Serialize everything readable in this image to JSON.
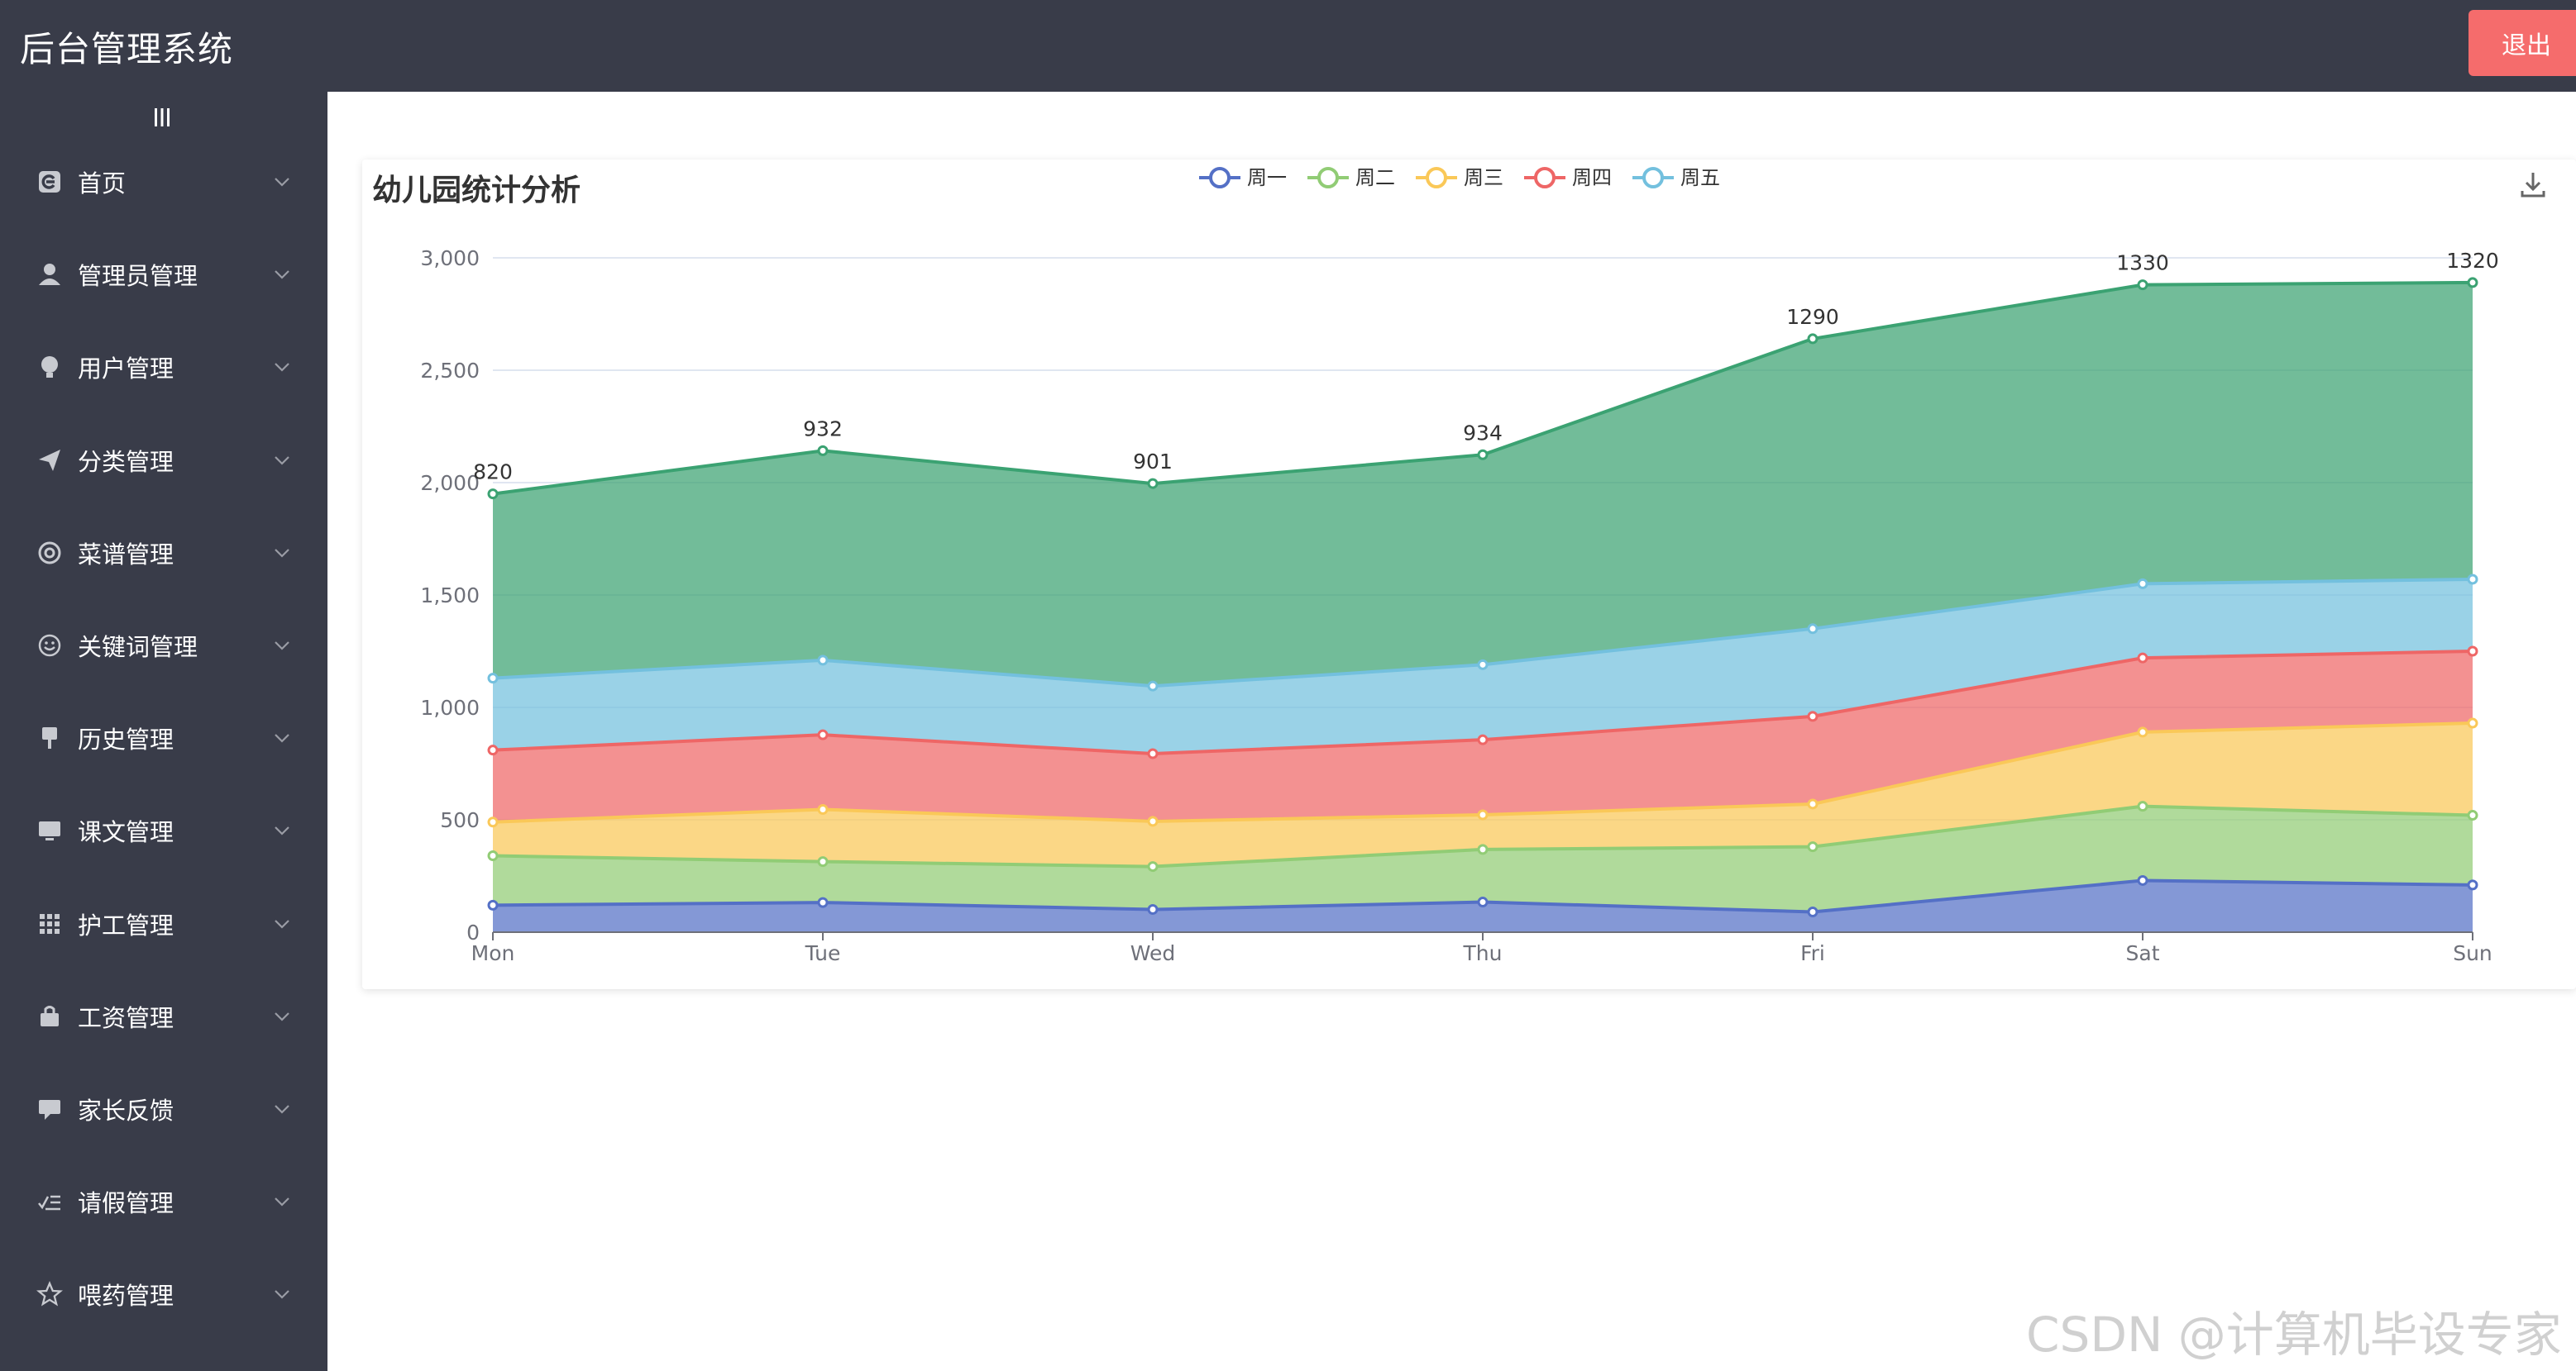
{
  "header": {
    "title": "后台管理系统",
    "logout_label": "退出"
  },
  "sidebar": {
    "items": [
      {
        "label": "首页",
        "icon": "dashboard-icon"
      },
      {
        "label": "管理员管理",
        "icon": "user-icon"
      },
      {
        "label": "用户管理",
        "icon": "lightbulb-icon"
      },
      {
        "label": "分类管理",
        "icon": "send-icon"
      },
      {
        "label": "菜谱管理",
        "icon": "lifebuoy-icon"
      },
      {
        "label": "关键词管理",
        "icon": "smile-icon"
      },
      {
        "label": "历史管理",
        "icon": "pin-icon"
      },
      {
        "label": "课文管理",
        "icon": "monitor-icon"
      },
      {
        "label": "护工管理",
        "icon": "grid-icon"
      },
      {
        "label": "工资管理",
        "icon": "bag-icon"
      },
      {
        "label": "家长反馈",
        "icon": "message-icon"
      },
      {
        "label": "请假管理",
        "icon": "checklist-icon"
      },
      {
        "label": "喂药管理",
        "icon": "star-icon"
      }
    ]
  },
  "main": {
    "card_title": "幼儿园统计分析"
  },
  "watermark": "CSDN @计算机毕设专家",
  "chart_data": {
    "type": "area",
    "stacked": true,
    "title": "幼儿园统计分析",
    "categories": [
      "Mon",
      "Tue",
      "Wed",
      "Thu",
      "Fri",
      "Sat",
      "Sun"
    ],
    "ylim": [
      0,
      3000
    ],
    "yticks": [
      0,
      500,
      1000,
      1500,
      2000,
      2500,
      3000
    ],
    "ytick_labels": [
      "0",
      "500",
      "1,000",
      "1,500",
      "2,000",
      "2,500",
      "3,000"
    ],
    "grid": true,
    "legend_position": "top-center",
    "series": [
      {
        "name": "周一",
        "color": "#5470c6",
        "values": [
          120,
          132,
          101,
          134,
          90,
          230,
          210
        ]
      },
      {
        "name": "周二",
        "color": "#91cc75",
        "values": [
          220,
          182,
          191,
          234,
          290,
          330,
          310
        ]
      },
      {
        "name": "周三",
        "color": "#fac858",
        "values": [
          150,
          232,
          201,
          154,
          190,
          330,
          410
        ]
      },
      {
        "name": "周四",
        "color": "#ee6666",
        "values": [
          320,
          332,
          301,
          334,
          390,
          330,
          320
        ]
      },
      {
        "name": "周五",
        "color": "#73c0de",
        "values": [
          320,
          332,
          301,
          334,
          390,
          330,
          320
        ]
      },
      {
        "name": "",
        "color": "#3ba272",
        "values": [
          820,
          932,
          901,
          934,
          1290,
          1330,
          1320
        ],
        "show_labels": true
      }
    ]
  }
}
